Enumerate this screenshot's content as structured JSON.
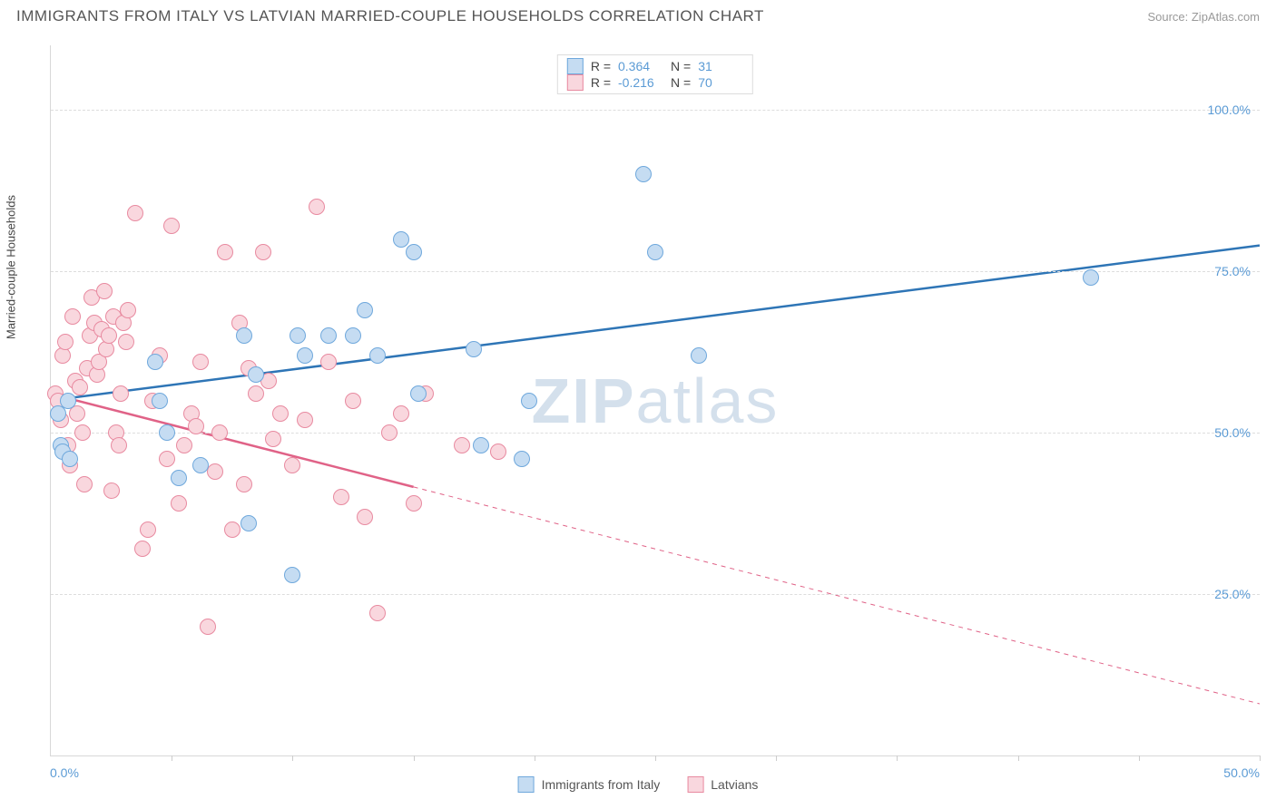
{
  "title": "IMMIGRANTS FROM ITALY VS LATVIAN MARRIED-COUPLE HOUSEHOLDS CORRELATION CHART",
  "source": "Source: ZipAtlas.com",
  "watermark": "ZIPatlas",
  "chart": {
    "type": "scatter",
    "background_color": "#ffffff",
    "grid_color": "#dddddd",
    "axis_color": "#d8d8d8",
    "ylabel": "Married-couple Households",
    "ylabel_fontsize": 13,
    "xlim": [
      0,
      50
    ],
    "ylim": [
      0,
      110
    ],
    "ygrid": [
      25,
      50,
      75,
      100
    ],
    "ytick_labels": [
      "25.0%",
      "50.0%",
      "75.0%",
      "100.0%"
    ],
    "xticks": [
      5,
      10,
      15,
      20,
      25,
      30,
      35,
      40,
      45,
      50
    ],
    "xtick_min_label": "0.0%",
    "xtick_max_label": "50.0%",
    "tick_label_color": "#5b9bd5",
    "tick_fontsize": 14,
    "marker_radius": 9,
    "marker_stroke_width": 1.5,
    "series_blue": {
      "label": "Immigrants from Italy",
      "fill": "#c5dcf2",
      "stroke": "#6fa8dc",
      "line_color": "#2e75b6",
      "line_width": 2.5,
      "R": "0.364",
      "N": "31",
      "regression": {
        "x1": 0,
        "y1": 55,
        "x2": 50,
        "y2": 79
      },
      "dash_start_x": null,
      "points": [
        [
          0.3,
          53
        ],
        [
          0.4,
          48
        ],
        [
          0.5,
          47
        ],
        [
          0.7,
          55
        ],
        [
          0.8,
          46
        ],
        [
          4.3,
          61
        ],
        [
          4.5,
          55
        ],
        [
          4.8,
          50
        ],
        [
          5.3,
          43
        ],
        [
          6.2,
          45
        ],
        [
          8.2,
          36
        ],
        [
          8.0,
          65
        ],
        [
          8.5,
          59
        ],
        [
          10.2,
          65
        ],
        [
          10.5,
          62
        ],
        [
          10.0,
          28
        ],
        [
          11.5,
          65
        ],
        [
          12.5,
          65
        ],
        [
          13.0,
          69
        ],
        [
          13.5,
          62
        ],
        [
          14.5,
          80
        ],
        [
          15.0,
          78
        ],
        [
          15.2,
          56
        ],
        [
          17.5,
          63
        ],
        [
          17.8,
          48
        ],
        [
          19.5,
          46
        ],
        [
          19.8,
          55
        ],
        [
          24.5,
          90
        ],
        [
          25.0,
          78
        ],
        [
          26.8,
          62
        ],
        [
          43.0,
          74
        ]
      ]
    },
    "series_pink": {
      "label": "Latvians",
      "fill": "#f9d7de",
      "stroke": "#e88aa0",
      "line_color": "#e06287",
      "line_width": 2.5,
      "R": "-0.216",
      "N": "70",
      "regression": {
        "x1": 0,
        "y1": 56,
        "x2": 50,
        "y2": 8
      },
      "dash_start_x": 15,
      "points": [
        [
          0.2,
          56
        ],
        [
          0.3,
          55
        ],
        [
          0.4,
          52
        ],
        [
          0.5,
          62
        ],
        [
          0.6,
          64
        ],
        [
          0.7,
          48
        ],
        [
          0.8,
          45
        ],
        [
          0.9,
          68
        ],
        [
          1.0,
          58
        ],
        [
          1.1,
          53
        ],
        [
          1.2,
          57
        ],
        [
          1.3,
          50
        ],
        [
          1.4,
          42
        ],
        [
          1.5,
          60
        ],
        [
          1.6,
          65
        ],
        [
          1.7,
          71
        ],
        [
          1.8,
          67
        ],
        [
          1.9,
          59
        ],
        [
          2.0,
          61
        ],
        [
          2.1,
          66
        ],
        [
          2.2,
          72
        ],
        [
          2.3,
          63
        ],
        [
          2.4,
          65
        ],
        [
          2.5,
          41
        ],
        [
          2.6,
          68
        ],
        [
          2.7,
          50
        ],
        [
          2.8,
          48
        ],
        [
          2.9,
          56
        ],
        [
          3.0,
          67
        ],
        [
          3.1,
          64
        ],
        [
          3.2,
          69
        ],
        [
          3.5,
          84
        ],
        [
          3.8,
          32
        ],
        [
          4.0,
          35
        ],
        [
          4.2,
          55
        ],
        [
          4.5,
          62
        ],
        [
          4.8,
          46
        ],
        [
          5.0,
          82
        ],
        [
          5.3,
          39
        ],
        [
          5.5,
          48
        ],
        [
          5.8,
          53
        ],
        [
          6.0,
          51
        ],
        [
          6.2,
          61
        ],
        [
          6.5,
          20
        ],
        [
          6.8,
          44
        ],
        [
          7.0,
          50
        ],
        [
          7.2,
          78
        ],
        [
          7.5,
          35
        ],
        [
          7.8,
          67
        ],
        [
          8.0,
          42
        ],
        [
          8.2,
          60
        ],
        [
          8.5,
          56
        ],
        [
          8.8,
          78
        ],
        [
          9.0,
          58
        ],
        [
          9.2,
          49
        ],
        [
          9.5,
          53
        ],
        [
          10.0,
          45
        ],
        [
          10.5,
          52
        ],
        [
          11.0,
          85
        ],
        [
          11.5,
          61
        ],
        [
          12.0,
          40
        ],
        [
          12.5,
          55
        ],
        [
          13.0,
          37
        ],
        [
          13.5,
          22
        ],
        [
          14.0,
          50
        ],
        [
          14.5,
          53
        ],
        [
          15.0,
          39
        ],
        [
          15.5,
          56
        ],
        [
          17.0,
          48
        ],
        [
          18.5,
          47
        ]
      ]
    }
  },
  "legend_top": {
    "r_label": "R =",
    "n_label": "N ="
  },
  "legend_bottom": {
    "items": [
      "Immigrants from Italy",
      "Latvians"
    ]
  }
}
